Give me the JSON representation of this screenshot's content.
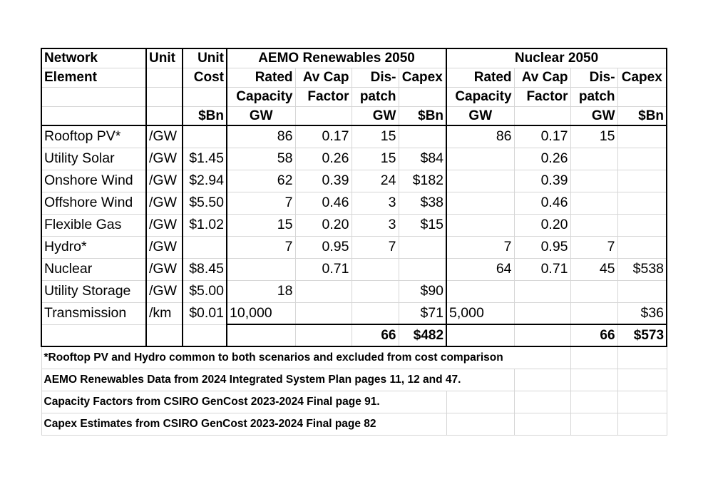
{
  "headers": {
    "row1": {
      "network": "Network",
      "unit": "Unit",
      "unit_cost": "Unit",
      "aemo_group": "AEMO Renewables 2050",
      "nuclear_group": "Nuclear 2050"
    },
    "row2": {
      "network": "Element",
      "unit_cost": "Cost",
      "aemo": [
        "Rated",
        "Av Cap",
        "Dis-",
        "Capex"
      ],
      "nuclear": [
        "Rated",
        "Av Cap",
        "Dis-",
        "Capex"
      ]
    },
    "row3": {
      "aemo": [
        "Capacity",
        "Factor",
        "patch",
        ""
      ],
      "nuclear": [
        "Capacity",
        "Factor",
        "patch",
        ""
      ]
    },
    "row4": {
      "unit_cost": "$Bn",
      "aemo": [
        "GW",
        "",
        "GW",
        "$Bn"
      ],
      "nuclear": [
        "GW",
        "",
        "GW",
        "$Bn"
      ]
    }
  },
  "rows": [
    {
      "element": "Rooftop PV*",
      "unit": "/GW",
      "cost": "",
      "aemo": [
        "86",
        "0.17",
        "15",
        ""
      ],
      "nuclear": [
        "86",
        "0.17",
        "15",
        ""
      ]
    },
    {
      "element": "Utility Solar",
      "unit": "/GW",
      "cost": "$1.45",
      "aemo": [
        "58",
        "0.26",
        "15",
        "$84"
      ],
      "nuclear": [
        "",
        "0.26",
        "",
        ""
      ]
    },
    {
      "element": "Onshore Wind",
      "unit": "/GW",
      "cost": "$2.94",
      "aemo": [
        "62",
        "0.39",
        "24",
        "$182"
      ],
      "nuclear": [
        "",
        "0.39",
        "",
        ""
      ]
    },
    {
      "element": "Offshore Wind",
      "unit": "/GW",
      "cost": "$5.50",
      "aemo": [
        "7",
        "0.46",
        "3",
        "$38"
      ],
      "nuclear": [
        "",
        "0.46",
        "",
        ""
      ]
    },
    {
      "element": "Flexible Gas",
      "unit": "/GW",
      "cost": "$1.02",
      "aemo": [
        "15",
        "0.20",
        "3",
        "$15"
      ],
      "nuclear": [
        "",
        "0.20",
        "",
        ""
      ]
    },
    {
      "element": "Hydro*",
      "unit": "/GW",
      "cost": "",
      "aemo": [
        "7",
        "0.95",
        "7",
        ""
      ],
      "nuclear": [
        "7",
        "0.95",
        "7",
        ""
      ]
    },
    {
      "element": "Nuclear",
      "unit": "/GW",
      "cost": "$8.45",
      "aemo": [
        "",
        "0.71",
        "",
        ""
      ],
      "nuclear": [
        "64",
        "0.71",
        "45",
        "$538"
      ]
    },
    {
      "element": "Utility Storage",
      "unit": "/GW",
      "cost": "$5.00",
      "aemo": [
        "18",
        "",
        "",
        "$90"
      ],
      "nuclear": [
        "",
        "",
        "",
        ""
      ]
    },
    {
      "element": "Transmission",
      "unit": "/km",
      "cost": "$0.01",
      "aemo": [
        "10,000",
        "",
        "",
        "$71"
      ],
      "nuclear": [
        "5,000",
        "",
        "",
        "$36"
      ]
    }
  ],
  "totals": {
    "aemo_dispatch": "66",
    "aemo_capex": "$482",
    "nuclear_dispatch": "66",
    "nuclear_capex": "$573"
  },
  "notes": [
    "*Rooftop PV and Hydro common to both scenarios and excluded from cost comparison",
    "AEMO Renewables Data from 2024 Integrated System Plan pages 11, 12 and 47.",
    "Capacity Factors from CSIRO GenCost 2023-2024 Final page 91.",
    "Capex Estimates from CSIRO GenCost 2023-2024 Final page 82"
  ]
}
